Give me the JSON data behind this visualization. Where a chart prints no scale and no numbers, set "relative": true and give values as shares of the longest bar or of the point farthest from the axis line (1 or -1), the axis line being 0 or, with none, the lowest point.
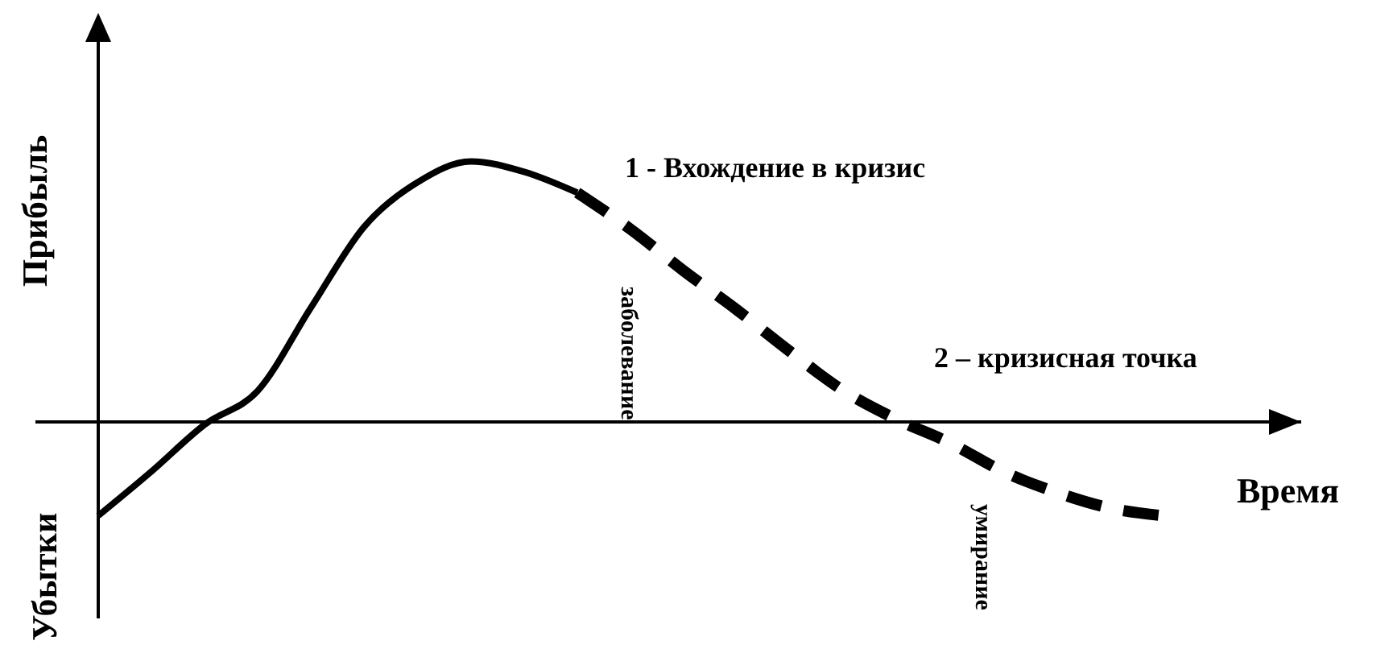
{
  "chart_data": {
    "type": "line",
    "relative": true,
    "ylabel": "Прибыль",
    "xlabel": "Время",
    "categories": [
      null,
      null,
      null,
      null,
      null,
      null,
      null,
      null,
      null,
      null,
      null,
      null,
      null,
      null,
      null,
      null,
      null,
      null,
      null,
      null,
      null
    ],
    "series": [
      {
        "color": "#000000",
        "line_style": "solid",
        "values": [
          -0.36,
          -0.19,
          -0.01,
          0.12,
          0.44,
          0.75,
          0.92,
          1,
          0.96,
          0.88,
          null,
          null,
          null,
          null,
          null,
          null,
          null,
          null,
          null,
          null,
          null
        ]
      },
      {
        "color": "#000000",
        "line_style": "dashed",
        "values": [
          null,
          null,
          null,
          null,
          null,
          null,
          null,
          null,
          null,
          0.88,
          0.74,
          0.58,
          0.43,
          0.27,
          0.12,
          0.01,
          -0.08,
          -0.19,
          -0.27,
          -0.33,
          -0.36
        ]
      }
    ],
    "annotations": [
      "Убытки",
      "1 - Вхождение в кризис",
      "2 – кризисная точка",
      "заболевание",
      "умирание"
    ]
  }
}
